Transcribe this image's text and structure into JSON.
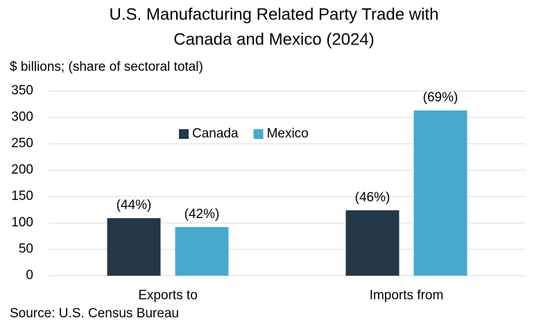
{
  "chart_data": {
    "type": "bar",
    "title": [
      "U.S. Manufacturing Related Party Trade with",
      "Canada and Mexico (2024)"
    ],
    "subtitle": "$ billions; (share of sectoral total)",
    "source": "Source: U.S. Census Bureau",
    "categories": [
      "Exports to",
      "Imports from"
    ],
    "series": [
      {
        "name": "Canada",
        "color": "#243746",
        "values": [
          109,
          124
        ],
        "data_labels": [
          "(44%)",
          "(46%)"
        ]
      },
      {
        "name": "Mexico",
        "color": "#45aacd",
        "values": [
          92,
          313
        ],
        "data_labels": [
          "(42%)",
          "(69%)"
        ]
      }
    ],
    "ylim": [
      0,
      350
    ],
    "yticks": [
      0,
      50,
      100,
      150,
      200,
      250,
      300,
      350
    ],
    "grid": true,
    "legend": "upper center"
  }
}
